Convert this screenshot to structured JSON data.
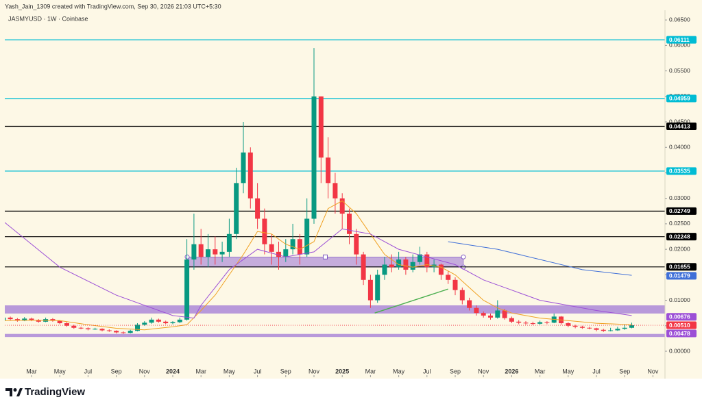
{
  "header": {
    "credit": "Yash_Jain_1309 created with TradingView.com, Sep 30, 2026 21:03 UTC+5:30",
    "symbol": "JASMYUSD · 1W · Coinbase",
    "brand": "TradingView"
  },
  "chart_data": {
    "type": "candlestick",
    "up_color": "#089981",
    "down_color": "#f23645",
    "xlim": [
      0.107,
      46.854
    ],
    "ylim": [
      -0.0047,
      0.0669
    ],
    "xticks": [
      {
        "value": 2,
        "label": "Mar"
      },
      {
        "value": 4,
        "label": "May"
      },
      {
        "value": 6,
        "label": "Jul"
      },
      {
        "value": 8,
        "label": "Sep"
      },
      {
        "value": 10,
        "label": "Nov"
      },
      {
        "value": 12,
        "label": "2024"
      },
      {
        "value": 14,
        "label": "Mar"
      },
      {
        "value": 16,
        "label": "May"
      },
      {
        "value": 18,
        "label": "Jul"
      },
      {
        "value": 20,
        "label": "Sep"
      },
      {
        "value": 22,
        "label": "Nov"
      },
      {
        "value": 24,
        "label": "2025"
      },
      {
        "value": 26,
        "label": "Mar"
      },
      {
        "value": 28,
        "label": "May"
      },
      {
        "value": 30,
        "label": "Jul"
      },
      {
        "value": 32,
        "label": "Sep"
      },
      {
        "value": 34,
        "label": "Nov"
      },
      {
        "value": 36,
        "label": "2026"
      },
      {
        "value": 38,
        "label": "Mar"
      },
      {
        "value": 40,
        "label": "May"
      },
      {
        "value": 42,
        "label": "Jul"
      },
      {
        "value": 44,
        "label": "Sep"
      },
      {
        "value": 46,
        "label": "Nov"
      }
    ],
    "yticks": [
      {
        "value": 0.065,
        "label": "0.06500"
      },
      {
        "value": 0.06,
        "label": "0.06000"
      },
      {
        "value": 0.055,
        "label": "0.05500"
      },
      {
        "value": 0.05,
        "label": "0.05000"
      },
      {
        "value": 0.045,
        "label": "0.04500"
      },
      {
        "value": 0.04,
        "label": "0.04000"
      },
      {
        "value": 0.035,
        "label": "0.03500"
      },
      {
        "value": 0.03,
        "label": "0.03000"
      },
      {
        "value": 0.025,
        "label": "0.02500"
      },
      {
        "value": 0.02,
        "label": "0.02000"
      },
      {
        "value": 0.015,
        "label": "0.01500"
      },
      {
        "value": 0.01,
        "label": "0.01000"
      },
      {
        "value": 0.005,
        "label": "0.00500"
      },
      {
        "value": 0,
        "label": "0.00000"
      }
    ],
    "x": [
      0,
      0.5,
      1,
      1.5,
      2,
      2.5,
      3,
      3.5,
      4,
      4.5,
      5,
      5.5,
      6,
      6.5,
      7,
      7.5,
      8,
      8.5,
      9,
      9.5,
      10,
      10.5,
      11,
      11.5,
      12,
      12.5,
      13,
      13.5,
      14,
      14.5,
      15,
      15.5,
      16,
      16.5,
      17,
      17.5,
      18,
      18.5,
      19,
      19.5,
      20,
      20.5,
      21,
      21.5,
      22,
      22.5,
      23,
      23.5,
      24,
      24.5,
      25,
      25.5,
      26,
      26.5,
      27,
      27.5,
      28,
      28.5,
      29,
      29.5,
      30,
      30.5,
      31,
      31.5,
      32,
      32.5,
      33,
      33.5,
      34,
      34.5,
      35,
      35.5,
      36,
      36.5,
      37,
      37.5,
      38,
      38.5,
      39,
      39.5,
      40,
      40.5,
      41,
      41.5,
      42,
      42.5,
      43,
      43.5,
      44,
      44.5
    ],
    "candles": [
      [
        0.006,
        0.007,
        0.0058,
        0.0066
      ],
      [
        0.0066,
        0.0068,
        0.0061,
        0.0063
      ],
      [
        0.0063,
        0.0065,
        0.0058,
        0.006
      ],
      [
        0.006,
        0.0067,
        0.0059,
        0.0064
      ],
      [
        0.0064,
        0.0066,
        0.0059,
        0.0061
      ],
      [
        0.0061,
        0.0063,
        0.0056,
        0.0058
      ],
      [
        0.0058,
        0.0066,
        0.0057,
        0.0063
      ],
      [
        0.0063,
        0.0065,
        0.0058,
        0.006
      ],
      [
        0.006,
        0.0061,
        0.0053,
        0.0055
      ],
      [
        0.0055,
        0.0057,
        0.0048,
        0.005
      ],
      [
        0.005,
        0.0052,
        0.0044,
        0.0046
      ],
      [
        0.0046,
        0.0048,
        0.0043,
        0.0045
      ],
      [
        0.0045,
        0.0047,
        0.0041,
        0.0043
      ],
      [
        0.0043,
        0.0046,
        0.0042,
        0.0044
      ],
      [
        0.0044,
        0.0045,
        0.0039,
        0.0041
      ],
      [
        0.0041,
        0.0043,
        0.0038,
        0.004
      ],
      [
        0.004,
        0.0041,
        0.0035,
        0.0037
      ],
      [
        0.0037,
        0.0039,
        0.0034,
        0.0036
      ],
      [
        0.0036,
        0.0042,
        0.0035,
        0.004
      ],
      [
        0.004,
        0.0055,
        0.0039,
        0.0052
      ],
      [
        0.0052,
        0.0059,
        0.005,
        0.0056
      ],
      [
        0.0056,
        0.0066,
        0.0054,
        0.0062
      ],
      [
        0.0062,
        0.0064,
        0.0056,
        0.0058
      ],
      [
        0.0058,
        0.006,
        0.0053,
        0.0055
      ],
      [
        0.0055,
        0.0059,
        0.0053,
        0.0057
      ],
      [
        0.0057,
        0.0066,
        0.0055,
        0.0062
      ],
      [
        0.0062,
        0.022,
        0.006,
        0.018
      ],
      [
        0.018,
        0.027,
        0.016,
        0.021
      ],
      [
        0.021,
        0.024,
        0.017,
        0.0185
      ],
      [
        0.0185,
        0.023,
        0.0165,
        0.02
      ],
      [
        0.02,
        0.0225,
        0.017,
        0.019
      ],
      [
        0.019,
        0.0215,
        0.0175,
        0.0195
      ],
      [
        0.0195,
        0.026,
        0.0185,
        0.023
      ],
      [
        0.023,
        0.036,
        0.022,
        0.033
      ],
      [
        0.033,
        0.045,
        0.031,
        0.039
      ],
      [
        0.039,
        0.04,
        0.028,
        0.03
      ],
      [
        0.03,
        0.033,
        0.024,
        0.026
      ],
      [
        0.026,
        0.028,
        0.019,
        0.021
      ],
      [
        0.021,
        0.023,
        0.017,
        0.0195
      ],
      [
        0.0195,
        0.0215,
        0.016,
        0.0185
      ],
      [
        0.0185,
        0.022,
        0.0175,
        0.02
      ],
      [
        0.02,
        0.025,
        0.019,
        0.022
      ],
      [
        0.022,
        0.023,
        0.017,
        0.019
      ],
      [
        0.019,
        0.03,
        0.0185,
        0.026
      ],
      [
        0.026,
        0.0595,
        0.025,
        0.05
      ],
      [
        0.05,
        0.05,
        0.033,
        0.038
      ],
      [
        0.038,
        0.042,
        0.03,
        0.033
      ],
      [
        0.033,
        0.035,
        0.027,
        0.03
      ],
      [
        0.03,
        0.031,
        0.024,
        0.027
      ],
      [
        0.027,
        0.028,
        0.021,
        0.023
      ],
      [
        0.023,
        0.024,
        0.017,
        0.019
      ],
      [
        0.019,
        0.0195,
        0.013,
        0.014
      ],
      [
        0.014,
        0.015,
        0.0085,
        0.01
      ],
      [
        0.01,
        0.016,
        0.0095,
        0.015
      ],
      [
        0.015,
        0.0185,
        0.014,
        0.017
      ],
      [
        0.017,
        0.019,
        0.0155,
        0.0165
      ],
      [
        0.0165,
        0.0195,
        0.016,
        0.018
      ],
      [
        0.018,
        0.0185,
        0.015,
        0.016
      ],
      [
        0.016,
        0.019,
        0.0155,
        0.0175
      ],
      [
        0.0175,
        0.0205,
        0.017,
        0.019
      ],
      [
        0.019,
        0.0195,
        0.0155,
        0.0165
      ],
      [
        0.0165,
        0.018,
        0.0155,
        0.017
      ],
      [
        0.017,
        0.0172,
        0.014,
        0.015
      ],
      [
        0.015,
        0.0158,
        0.0132,
        0.014
      ],
      [
        0.014,
        0.0145,
        0.011,
        0.012
      ],
      [
        0.012,
        0.0125,
        0.0092,
        0.01
      ],
      [
        0.01,
        0.0105,
        0.008,
        0.0085
      ],
      [
        0.0085,
        0.009,
        0.007,
        0.0075
      ],
      [
        0.0075,
        0.0078,
        0.0066,
        0.007
      ],
      [
        0.007,
        0.0074,
        0.0062,
        0.0066
      ],
      [
        0.0066,
        0.01,
        0.0064,
        0.008
      ],
      [
        0.008,
        0.0083,
        0.0062,
        0.0065
      ],
      [
        0.0065,
        0.0068,
        0.0055,
        0.0058
      ],
      [
        0.0058,
        0.0061,
        0.0053,
        0.0056
      ],
      [
        0.0056,
        0.0059,
        0.0052,
        0.0055
      ],
      [
        0.0055,
        0.0058,
        0.0051,
        0.0054
      ],
      [
        0.0054,
        0.006,
        0.0052,
        0.0057
      ],
      [
        0.0057,
        0.0059,
        0.0053,
        0.0056
      ],
      [
        0.0056,
        0.0074,
        0.0055,
        0.0068
      ],
      [
        0.0068,
        0.0069,
        0.0052,
        0.0055
      ],
      [
        0.0055,
        0.0057,
        0.0047,
        0.005
      ],
      [
        0.005,
        0.0052,
        0.0045,
        0.0048
      ],
      [
        0.0048,
        0.005,
        0.0044,
        0.0046
      ],
      [
        0.0046,
        0.0048,
        0.0043,
        0.0045
      ],
      [
        0.0045,
        0.0046,
        0.0039,
        0.0042
      ],
      [
        0.0042,
        0.0044,
        0.0038,
        0.004
      ],
      [
        0.004,
        0.0046,
        0.0039,
        0.0041
      ],
      [
        0.0041,
        0.0048,
        0.004,
        0.0044
      ],
      [
        0.0044,
        0.0052,
        0.0042,
        0.0046
      ],
      [
        0.0046,
        0.0056,
        0.0045,
        0.0051
      ]
    ],
    "lines": [
      {
        "color": "#f0a020",
        "x": [
          0,
          2,
          4,
          6,
          8,
          10,
          12,
          13,
          14,
          15,
          16,
          17,
          18,
          19,
          20,
          21,
          22,
          23,
          24,
          25,
          26,
          27,
          28,
          29,
          30,
          31,
          32,
          33,
          34,
          35,
          36,
          38,
          40,
          42,
          44.5
        ],
        "values": [
          0.006,
          0.0061,
          0.006,
          0.0052,
          0.0045,
          0.0042,
          0.0048,
          0.0052,
          0.008,
          0.011,
          0.015,
          0.019,
          0.0235,
          0.023,
          0.021,
          0.02,
          0.0215,
          0.028,
          0.0295,
          0.027,
          0.023,
          0.019,
          0.017,
          0.0165,
          0.017,
          0.0165,
          0.015,
          0.0125,
          0.01,
          0.0085,
          0.0075,
          0.0065,
          0.006,
          0.0055,
          0.0052
        ]
      },
      {
        "color": "#9c4fd6",
        "x": [
          0,
          4,
          8,
          12,
          13.5,
          14,
          16,
          18,
          20,
          22,
          24,
          26,
          28,
          30,
          32,
          34,
          36,
          38,
          40,
          42,
          44.5
        ],
        "values": [
          0.0255,
          0.0165,
          0.011,
          0.007,
          0.0065,
          0.009,
          0.016,
          0.02,
          0.0185,
          0.0195,
          0.024,
          0.023,
          0.02,
          0.0185,
          0.017,
          0.014,
          0.012,
          0.01,
          0.009,
          0.008,
          0.007
        ]
      },
      {
        "color": "#3f6fd8",
        "x": [
          31.5,
          35,
          38,
          41,
          44.5
        ],
        "values": [
          0.0215,
          0.02,
          0.018,
          0.016,
          0.0149
        ]
      },
      {
        "color": "#4caf50",
        "x": [
          26.3,
          31.5
        ],
        "values": [
          0.0075,
          0.0122
        ]
      }
    ],
    "levels": [
      {
        "value": 0.06111,
        "label": "0.06111",
        "color": "#00bcd4"
      },
      {
        "value": 0.04959,
        "label": "0.04959",
        "color": "#00bcd4"
      },
      {
        "value": 0.04413,
        "label": "0.04413",
        "color": "#000000"
      },
      {
        "value": 0.03535,
        "label": "0.03535",
        "color": "#00bcd4"
      },
      {
        "value": 0.02749,
        "label": "0.02749",
        "color": "#000000"
      },
      {
        "value": 0.02248,
        "label": "0.02248",
        "color": "#000000"
      },
      {
        "value": 0.01655,
        "label": "0.01655",
        "color": "#000000"
      }
    ],
    "price_labels": [
      {
        "value": 0.01479,
        "label": "0.01479",
        "color": "#3f6fd8"
      },
      {
        "value": 0.00676,
        "label": "0.00676",
        "color": "#9c4fd6"
      },
      {
        "value": 0.0051,
        "label": "0.00510",
        "color": "#f23645"
      },
      {
        "value": 0.00478,
        "label": "0.00478",
        "color": "#9c4fd6"
      }
    ],
    "zones": [
      {
        "top": 0.009,
        "bottom": 0.0074,
        "color": "#a07ad6"
      },
      {
        "top": 0.0034,
        "bottom": 0.0028,
        "color": "#a07ad6"
      }
    ],
    "box": {
      "x": [
        13.02,
        32.58
      ],
      "top": 0.0185,
      "bottom": 0.0165,
      "color": "#a07ad6"
    }
  }
}
